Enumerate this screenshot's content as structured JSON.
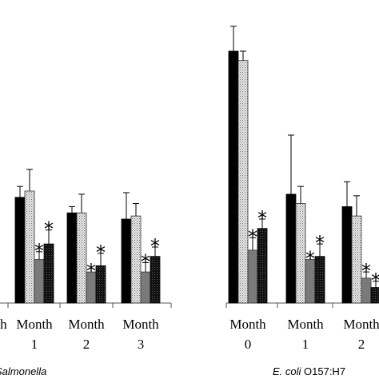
{
  "chart_data": {
    "type": "bar",
    "title": "",
    "xlabel": "",
    "ylabel": "",
    "groups": [
      {
        "label_parts": [
          "Salmonella"
        ],
        "categories": [
          {
            "label": [
              "Month",
              ""
            ],
            "values": [
              null,
              null,
              null,
              null
            ],
            "errors": [
              null,
              null,
              null,
              null
            ],
            "stars": [
              false,
              false,
              false,
              false
            ]
          },
          {
            "label": [
              "Month",
              "1"
            ],
            "values": [
              3.4,
              3.6,
              1.4,
              1.9
            ],
            "errors": [
              0.35,
              0.7,
              0.25,
              0.45
            ],
            "stars": [
              false,
              false,
              true,
              true
            ]
          },
          {
            "label": [
              "Month",
              "2"
            ],
            "values": [
              2.9,
              2.9,
              1.0,
              1.2
            ],
            "errors": [
              0.2,
              0.6,
              0.0,
              0.4
            ],
            "stars": [
              false,
              false,
              true,
              true
            ]
          },
          {
            "label": [
              "Month",
              "3"
            ],
            "values": [
              2.7,
              2.8,
              1.0,
              1.5
            ],
            "errors": [
              0.85,
              0.4,
              0.3,
              0.3
            ],
            "stars": [
              false,
              false,
              true,
              true
            ]
          }
        ]
      },
      {
        "label_parts": [
          "E. coli",
          " O157:H7"
        ],
        "categories": [
          {
            "label": [
              "Month",
              "0"
            ],
            "values": [
              8.1,
              7.8,
              1.7,
              2.4
            ],
            "errors": [
              0.8,
              0.3,
              0.4,
              0.3
            ],
            "stars": [
              false,
              false,
              true,
              true
            ]
          },
          {
            "label": [
              "Month",
              "1"
            ],
            "values": [
              3.5,
              3.2,
              1.4,
              1.5
            ],
            "errors": [
              1.9,
              0.55,
              0.0,
              0.4
            ],
            "stars": [
              false,
              false,
              true,
              true
            ]
          },
          {
            "label": [
              "Month",
              "2"
            ],
            "values": [
              3.1,
              2.8,
              0.8,
              0.5
            ],
            "errors": [
              0.8,
              0.65,
              0.2,
              0.2
            ],
            "stars": [
              false,
              false,
              true,
              true
            ]
          }
        ]
      }
    ],
    "series_colors": [
      "#000000",
      "#dedede",
      "#7a7a7a",
      "#1c1c1c"
    ],
    "series_patterns": [
      "solid",
      "dotted",
      "solid",
      "crosshatch"
    ],
    "ylim": [
      0,
      8.5
    ],
    "grid": false,
    "legend": false,
    "significance_marker": "*"
  }
}
